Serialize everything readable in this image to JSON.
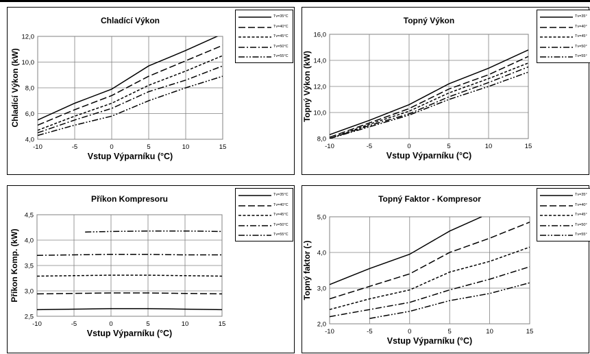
{
  "page": {
    "background": "#ffffff",
    "line_color": "#000000"
  },
  "chart_data": [
    {
      "id": "chart1",
      "type": "line",
      "title": "Chladící Výkon",
      "xlabel": "Vstup Výparníku (°C)",
      "ylabel": "Chladící Výkon (kW)",
      "xlim": [
        -10,
        15
      ],
      "ylim": [
        4.0,
        12.0
      ],
      "xticks": [
        "-10",
        "-5",
        "0",
        "5",
        "10",
        "15"
      ],
      "yticks": [
        "4,0",
        "6,0",
        "8,0",
        "10,0",
        "12,0"
      ],
      "grid": true,
      "legend_position": "top-right",
      "series": [
        {
          "name": "Tv=35°C",
          "dash": "solid",
          "x": [
            -10,
            -5,
            0,
            5,
            10,
            15
          ],
          "y": [
            5.5,
            6.8,
            7.9,
            9.7,
            10.9,
            12.2
          ]
        },
        {
          "name": "Tv=40°C",
          "dash": "long-dash",
          "x": [
            -10,
            -5,
            0,
            5,
            10,
            15
          ],
          "y": [
            5.1,
            6.3,
            7.4,
            8.9,
            10.1,
            11.3
          ]
        },
        {
          "name": "Tv=45°C",
          "dash": "short-dash",
          "x": [
            -10,
            -5,
            0,
            5,
            10,
            15
          ],
          "y": [
            4.7,
            5.8,
            6.8,
            8.2,
            9.3,
            10.5
          ]
        },
        {
          "name": "Tv=50°C",
          "dash": "dash-dot",
          "x": [
            -10,
            -5,
            0,
            5,
            10,
            15
          ],
          "y": [
            4.5,
            5.5,
            6.4,
            7.7,
            8.6,
            9.7
          ]
        },
        {
          "name": "Tv=55°C",
          "dash": "dash-dot-dot",
          "x": [
            -10,
            -5,
            0,
            5,
            10,
            15
          ],
          "y": [
            4.3,
            5.1,
            5.8,
            7.0,
            8.0,
            8.9
          ]
        }
      ]
    },
    {
      "id": "chart2",
      "type": "line",
      "title": "Topný Výkon",
      "xlabel": "Vstup Výparníku (°C)",
      "ylabel": "Topný Výkon (kW)",
      "xlim": [
        -10,
        15
      ],
      "ylim": [
        8.0,
        16.0
      ],
      "xticks": [
        "-10",
        "-5",
        "0",
        "5",
        "10",
        "15"
      ],
      "yticks": [
        "8,0",
        "10,0",
        "12,0",
        "14,0",
        "16,0"
      ],
      "grid": true,
      "legend_position": "top-right",
      "series": [
        {
          "name": "Tv=35°",
          "dash": "solid",
          "x": [
            -10,
            -5,
            0,
            5,
            10,
            15
          ],
          "y": [
            8.3,
            9.4,
            10.6,
            12.2,
            13.4,
            14.8
          ]
        },
        {
          "name": "Tv=40°",
          "dash": "long-dash",
          "x": [
            -10,
            -5,
            0,
            5,
            10,
            15
          ],
          "y": [
            8.1,
            9.2,
            10.3,
            11.8,
            12.9,
            14.3
          ]
        },
        {
          "name": "Tv=45°",
          "dash": "short-dash",
          "x": [
            -10,
            -5,
            0,
            5,
            10,
            15
          ],
          "y": [
            8.0,
            9.1,
            10.1,
            11.5,
            12.6,
            13.8
          ]
        },
        {
          "name": "Tv=50°",
          "dash": "dash-dot",
          "x": [
            -10,
            -5,
            0,
            5,
            10,
            15
          ],
          "y": [
            8.0,
            9.0,
            9.9,
            11.2,
            12.3,
            13.5
          ]
        },
        {
          "name": "Tv=55°",
          "dash": "dash-dot-dot",
          "x": [
            -10,
            -5,
            0,
            5,
            10,
            15
          ],
          "y": [
            8.0,
            8.9,
            9.8,
            11.0,
            12.0,
            13.1
          ]
        }
      ]
    },
    {
      "id": "chart3",
      "type": "line",
      "title": "Příkon Kompresoru",
      "xlabel": "Vstup Výparníku (°C)",
      "ylabel": "Příkon Komp. (kW)",
      "xlim": [
        -10,
        15
      ],
      "ylim": [
        2.5,
        4.5
      ],
      "xticks": [
        "-10",
        "-5",
        "0",
        "5",
        "10",
        "15"
      ],
      "yticks": [
        "2,5",
        "3,0",
        "3,5",
        "4,0",
        "4,5"
      ],
      "grid": true,
      "legend_position": "top-right",
      "series": [
        {
          "name": "Tv=35°C",
          "dash": "solid",
          "x": [
            -10,
            -5,
            0,
            5,
            10,
            15
          ],
          "y": [
            2.63,
            2.64,
            2.65,
            2.65,
            2.64,
            2.63
          ]
        },
        {
          "name": "Tv=40°C",
          "dash": "long-dash",
          "x": [
            -10,
            -5,
            0,
            5,
            10,
            15
          ],
          "y": [
            2.94,
            2.95,
            2.96,
            2.96,
            2.95,
            2.94
          ]
        },
        {
          "name": "Tv=45°C",
          "dash": "short-dash",
          "x": [
            -10,
            -5,
            0,
            5,
            10,
            15
          ],
          "y": [
            3.29,
            3.3,
            3.31,
            3.31,
            3.3,
            3.29
          ]
        },
        {
          "name": "Tv=50°C",
          "dash": "dash-dot",
          "x": [
            -10,
            -5,
            0,
            5,
            10,
            15
          ],
          "y": [
            3.7,
            3.71,
            3.72,
            3.72,
            3.71,
            3.71
          ]
        },
        {
          "name": "Tv=55°C",
          "dash": "dash-dot-dot",
          "x": [
            -3.5,
            0,
            5,
            10,
            15
          ],
          "y": [
            4.16,
            4.17,
            4.18,
            4.18,
            4.17
          ]
        }
      ]
    },
    {
      "id": "chart4",
      "type": "line",
      "title": "Topný Faktor - Kompresor",
      "xlabel": "Vstup Výparníku (°C)",
      "ylabel": "Topný faktor (-)",
      "xlim": [
        -10,
        15
      ],
      "ylim": [
        2.0,
        5.0
      ],
      "xticks": [
        "-10",
        "-5",
        "0",
        "5",
        "10",
        "15"
      ],
      "yticks": [
        "2,0",
        "3,0",
        "4,0",
        "5,0"
      ],
      "grid": true,
      "legend_position": "top-right",
      "series": [
        {
          "name": "Tv=35°",
          "dash": "solid",
          "x": [
            -10,
            -5,
            0,
            5,
            9
          ],
          "y": [
            3.1,
            3.55,
            3.95,
            4.6,
            5.0
          ]
        },
        {
          "name": "Tv=40°",
          "dash": "long-dash",
          "x": [
            -10,
            -5,
            0,
            5,
            10,
            15
          ],
          "y": [
            2.7,
            3.05,
            3.4,
            4.0,
            4.4,
            4.85
          ]
        },
        {
          "name": "Tv=45°",
          "dash": "short-dash",
          "x": [
            -10,
            -5,
            0,
            5,
            10,
            15
          ],
          "y": [
            2.4,
            2.7,
            2.95,
            3.45,
            3.75,
            4.15
          ]
        },
        {
          "name": "Tv=50°",
          "dash": "dash-dot",
          "x": [
            -10,
            -5,
            0,
            5,
            10,
            15
          ],
          "y": [
            2.2,
            2.4,
            2.6,
            2.95,
            3.25,
            3.6
          ]
        },
        {
          "name": "Tv=55°",
          "dash": "dash-dot-dot",
          "x": [
            -5,
            0,
            5,
            10,
            15
          ],
          "y": [
            2.15,
            2.35,
            2.65,
            2.85,
            3.15
          ]
        }
      ]
    }
  ]
}
